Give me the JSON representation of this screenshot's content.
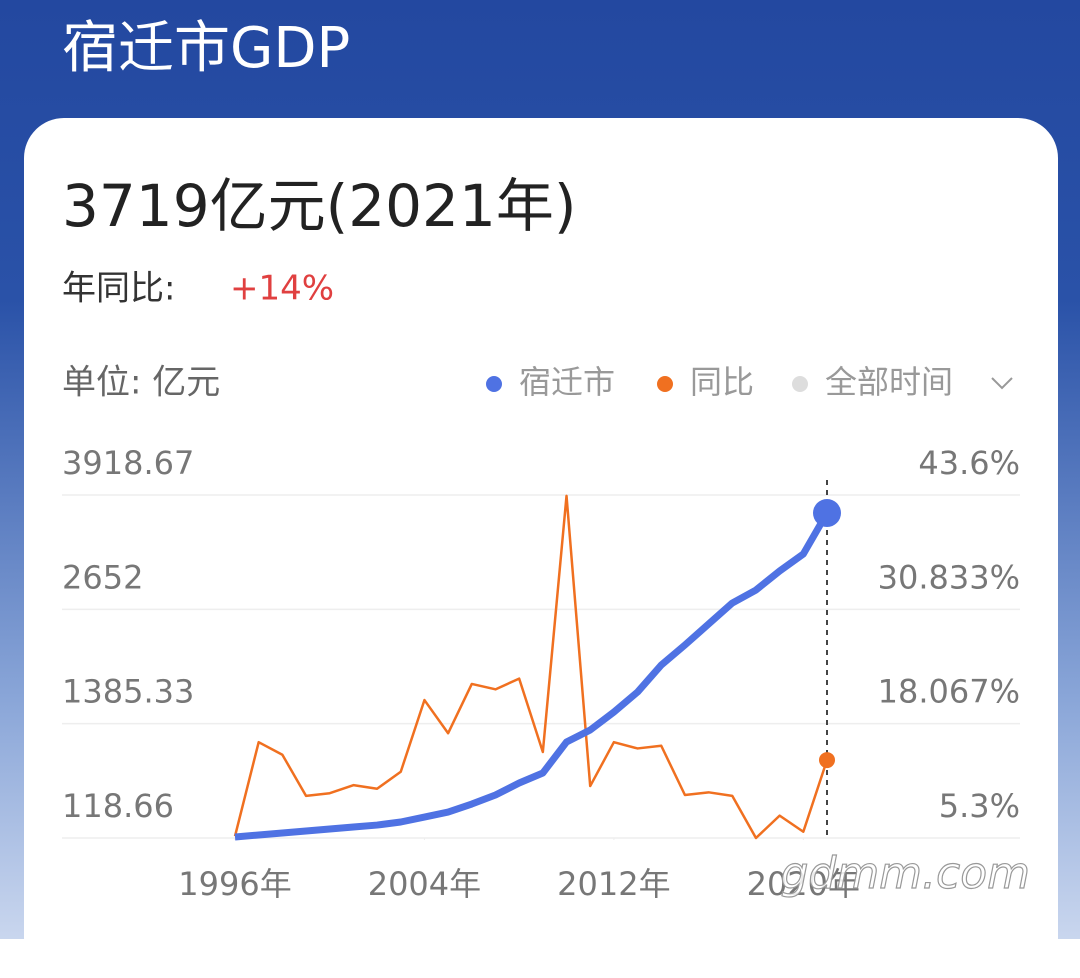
{
  "chart_data": {
    "type": "line",
    "title": "宿迁市GDP",
    "headline": "3719亿元(2021年)",
    "yoy_label": "年同比:",
    "yoy_value": "+14%",
    "unit_label": "单位: 亿元",
    "time_range": "全部时间",
    "watermark": "gdmm.com",
    "x": [
      1996,
      1997,
      1998,
      1999,
      2000,
      2001,
      2002,
      2003,
      2004,
      2005,
      2006,
      2007,
      2008,
      2009,
      2010,
      2011,
      2012,
      2013,
      2014,
      2015,
      2016,
      2017,
      2018,
      2019,
      2020,
      2021
    ],
    "xlim": [
      1996,
      2021
    ],
    "xticks": [
      {
        "value": 1996,
        "label": "1996年"
      },
      {
        "value": 2004,
        "label": "2004年"
      },
      {
        "value": 2012,
        "label": "2012年"
      },
      {
        "value": 2020,
        "label": "2020年"
      }
    ],
    "ylim": [
      118.66,
      3918.67
    ],
    "yticks": [
      118.66,
      1385.33,
      2652,
      3918.67
    ],
    "y2lim": [
      5.3,
      43.6
    ],
    "y2ticks": [
      {
        "value": 5.3,
        "label": "5.3%"
      },
      {
        "value": 18.067,
        "label": "18.067%"
      },
      {
        "value": 30.833,
        "label": "30.833%"
      },
      {
        "value": 43.6,
        "label": "43.6%"
      }
    ],
    "grid": true,
    "series": [
      {
        "name": "宿迁市",
        "color": "#4f72e3",
        "axis": "y",
        "values": [
          130,
          152,
          174,
          196,
          218,
          240,
          262,
          296,
          351,
          406,
          495,
          595,
          728,
          839,
          1182,
          1315,
          1514,
          1736,
          2035,
          2257,
          2489,
          2722,
          2866,
          3077,
          3265,
          3719
        ]
      },
      {
        "name": "同比",
        "color": "#f07020",
        "axis": "y2",
        "values": [
          5.5,
          16.0,
          14.6,
          10.0,
          10.3,
          11.2,
          10.8,
          12.7,
          20.7,
          17.0,
          22.5,
          21.9,
          23.1,
          14.9,
          43.5,
          11.1,
          16.0,
          15.3,
          15.6,
          10.1,
          10.4,
          10.0,
          5.3,
          7.8,
          6.0,
          14.0
        ]
      }
    ]
  }
}
